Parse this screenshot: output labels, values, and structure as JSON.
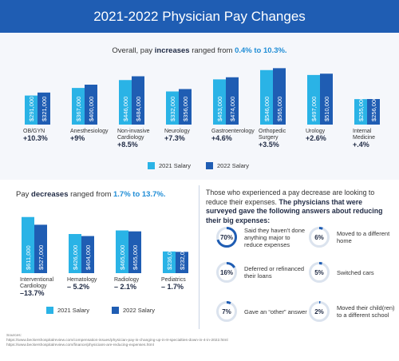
{
  "title": "2021-2022 Physician Pay Changes",
  "increases": {
    "subtitle_pre": "Overall, pay ",
    "subtitle_bold": "increases",
    "subtitle_mid": " ranged from ",
    "subtitle_range": "0.4% to 10.3%."
  },
  "decreases": {
    "subtitle_pre": "Pay ",
    "subtitle_bold": "decreases",
    "subtitle_mid": " ranged from ",
    "subtitle_range": "1.7% to 13.7%."
  },
  "legend": {
    "s2021": "2021 Salary",
    "s2022": "2022 Salary"
  },
  "colors": {
    "c2021": "#2ab3e6",
    "c2022": "#1f5db3",
    "banner": "#1f5db3",
    "ring": "#1f5db3",
    "track": "#dbe3ee"
  },
  "chart_data": [
    {
      "type": "bar",
      "series": [
        {
          "name": "2021 Salary"
        },
        {
          "name": "2022 Salary"
        }
      ],
      "categories": [
        {
          "name": "OB/GYN",
          "v2021": "$291,000",
          "v2022": "$321,000",
          "h2021": 291,
          "h2022": 321,
          "change": "+10.3%"
        },
        {
          "name": "Anesthesiology",
          "v2021": "$367,000",
          "v2022": "$400,000",
          "h2021": 367,
          "h2022": 400,
          "change": "+9%"
        },
        {
          "name": "Non-invasive Cardiology",
          "v2021": "$446,000",
          "v2022": "$484,000",
          "h2021": 446,
          "h2022": 484,
          "change": "+8.5%"
        },
        {
          "name": "Neurology",
          "v2021": "$332,000",
          "v2022": "$356,000",
          "h2021": 332,
          "h2022": 356,
          "change": "+7.3%"
        },
        {
          "name": "Gastroenterology",
          "v2021": "$453,000",
          "v2022": "$474,000",
          "h2021": 453,
          "h2022": 474,
          "change": "+4.6%"
        },
        {
          "name": "Orthopedic Surgery",
          "v2021": "$546,000",
          "v2022": "$565,000",
          "h2021": 546,
          "h2022": 565,
          "change": "+3.5%"
        },
        {
          "name": "Urology",
          "v2021": "$497,000",
          "v2022": "$510,000",
          "h2021": 497,
          "h2022": 510,
          "change": "+2.6%"
        },
        {
          "name": "Internal Medicine",
          "v2021": "$255,000",
          "v2022": "$256,000",
          "h2021": 255,
          "h2022": 256,
          "change": "+.4%"
        }
      ]
    },
    {
      "type": "bar",
      "series": [
        {
          "name": "2021 Salary"
        },
        {
          "name": "2022 Salary"
        }
      ],
      "categories": [
        {
          "name": "Interventional Cardiology",
          "v2021": "$611,000",
          "v2022": "$527,000",
          "h2021": 611,
          "h2022": 527,
          "change": "–13.7%"
        },
        {
          "name": "Hematology",
          "v2021": "$426,000",
          "v2022": "$404,000",
          "h2021": 426,
          "h2022": 404,
          "change": "– 5.2%"
        },
        {
          "name": "Radiology",
          "v2021": "$465,000",
          "v2022": "$455,000",
          "h2021": 465,
          "h2022": 455,
          "change": "– 2.1%"
        },
        {
          "name": "Pediatrics",
          "v2021": "$236,000",
          "v2022": "$232,000",
          "h2021": 236,
          "h2022": 232,
          "change": "– 1.7%"
        }
      ]
    }
  ],
  "survey": {
    "intro": "Those who experienced a pay decrease are looking to reduce their expenses.",
    "intro_bold": "The physicians that were surveyed gave the following answers about reducing their big expenses:",
    "items": [
      {
        "pct": "70%",
        "value": 70,
        "text": "Said they haven't done anything major to reduce expenses"
      },
      {
        "pct": "6%",
        "value": 6,
        "text": "Moved to a different home"
      },
      {
        "pct": "16%",
        "value": 16,
        "text": "Deferred or refinanced their loans"
      },
      {
        "pct": "5%",
        "value": 5,
        "text": "Switched cars"
      },
      {
        "pct": "7%",
        "value": 7,
        "text": "Gave an “other” answer"
      },
      {
        "pct": "2%",
        "value": 2,
        "text": "Moved their child(ren) to a different school"
      }
    ]
  },
  "sources": {
    "label": "Sources:",
    "line1": "https://www.beckershospitalreview.com/compensation-issues/physician-pay-is-changing-up-in-8-specialties-down-in-4-in-2022.html",
    "line2": "https://www.beckershospitalreview.com/finance/physicians-are-reducing-expenses.html"
  }
}
